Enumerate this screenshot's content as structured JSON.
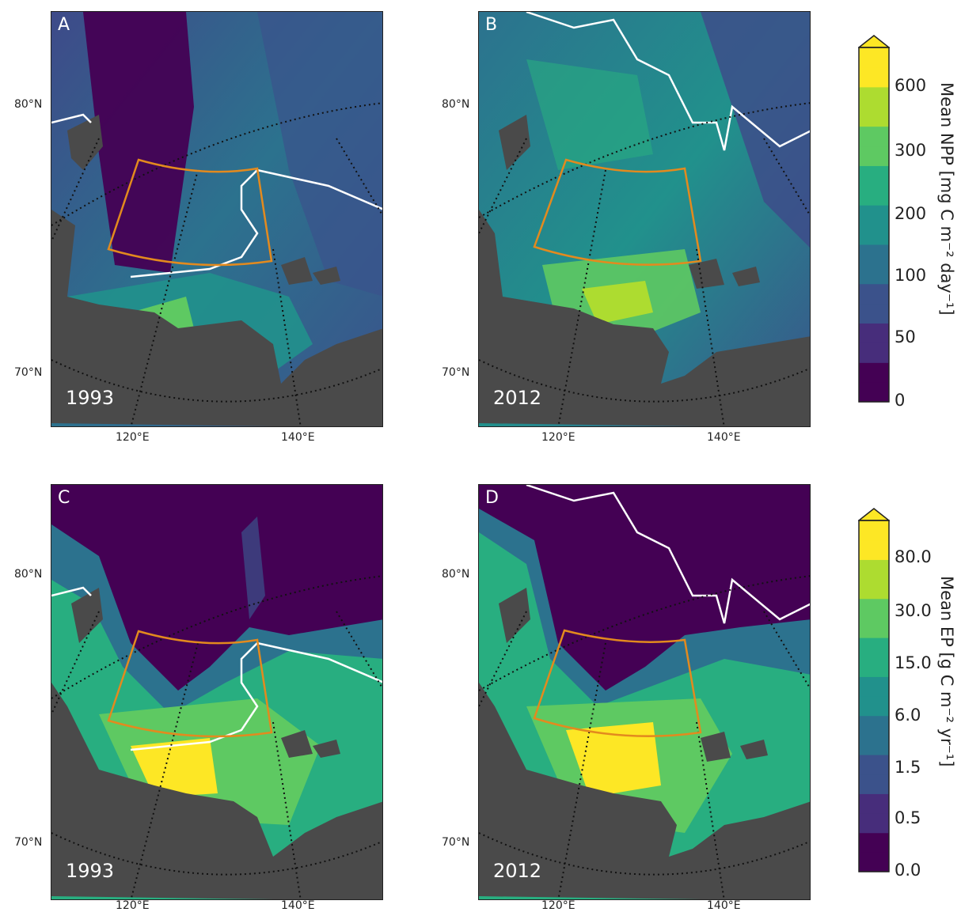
{
  "colors": {
    "land": "#4a4a4a",
    "ice_edge": "#ffffff",
    "box": "#e38a1e",
    "grid": "#111111"
  },
  "lat_labels": [
    "80°N",
    "70°N"
  ],
  "lon_labels": [
    "120°E",
    "140°E"
  ],
  "panels": [
    {
      "id": "A",
      "label": "A",
      "year": "1993",
      "variable": "NPP"
    },
    {
      "id": "B",
      "label": "B",
      "year": "2012",
      "variable": "NPP"
    },
    {
      "id": "C",
      "label": "C",
      "year": "1993",
      "variable": "EP"
    },
    {
      "id": "D",
      "label": "D",
      "year": "2012",
      "variable": "EP"
    }
  ],
  "colorbars": [
    {
      "id": "npp",
      "title": "Mean NPP [mg C m⁻² day⁻¹]",
      "ticks": [
        "600",
        "300",
        "200",
        "100",
        "50",
        "0"
      ],
      "extend": "max",
      "palette": [
        "#440154",
        "#472d7b",
        "#3b528b",
        "#2c728e",
        "#21918c",
        "#28ae80",
        "#5ec962",
        "#addc30",
        "#fde725"
      ]
    },
    {
      "id": "ep",
      "title": "Mean EP [g C m⁻² yr⁻¹]",
      "ticks": [
        "80.0",
        "30.0",
        "15.0",
        "6.0",
        "1.5",
        "0.5",
        "0.0"
      ],
      "extend": "max",
      "palette": [
        "#440154",
        "#472d7b",
        "#3b528b",
        "#2c728e",
        "#21918c",
        "#28ae80",
        "#5ec962",
        "#addc30",
        "#fde725"
      ]
    }
  ]
}
